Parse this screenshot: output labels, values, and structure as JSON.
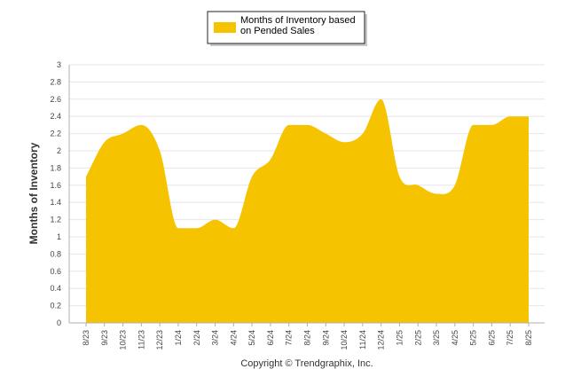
{
  "chart_data": {
    "type": "area",
    "x": [
      "8/23",
      "9/23",
      "10/23",
      "11/23",
      "12/23",
      "1/24",
      "2/24",
      "3/24",
      "4/24",
      "5/24",
      "6/24",
      "7/24",
      "8/24",
      "9/24",
      "10/24",
      "11/24",
      "12/24",
      "1/25",
      "2/25",
      "3/25",
      "4/25",
      "5/25",
      "6/25",
      "7/25",
      "8/25"
    ],
    "series": [
      {
        "name": "Months of Inventory based on Pended Sales",
        "values": [
          1.7,
          2.1,
          2.2,
          2.3,
          2.0,
          1.1,
          1.1,
          1.2,
          1.1,
          1.7,
          1.9,
          2.3,
          2.3,
          2.2,
          2.1,
          2.2,
          2.6,
          1.7,
          1.6,
          1.5,
          1.6,
          2.3,
          2.3,
          2.4,
          2.4
        ]
      }
    ],
    "ylabel": "Months of Inventory",
    "ylim": [
      0,
      3
    ],
    "yticks": [
      "0",
      "0.2",
      "0.4",
      "0.6",
      "0.8",
      "1",
      "1.2",
      "1.4",
      "1.6",
      "1.8",
      "2",
      "2.2",
      "2.4",
      "2.6",
      "2.8",
      "3"
    ],
    "legend": {
      "position": "top-center"
    },
    "grid": true,
    "colors": {
      "area": "#F5C300",
      "grid": "#e6e6e6",
      "axis": "#b0b0b0"
    },
    "footer": "Copyright © Trendgraphix, Inc."
  }
}
